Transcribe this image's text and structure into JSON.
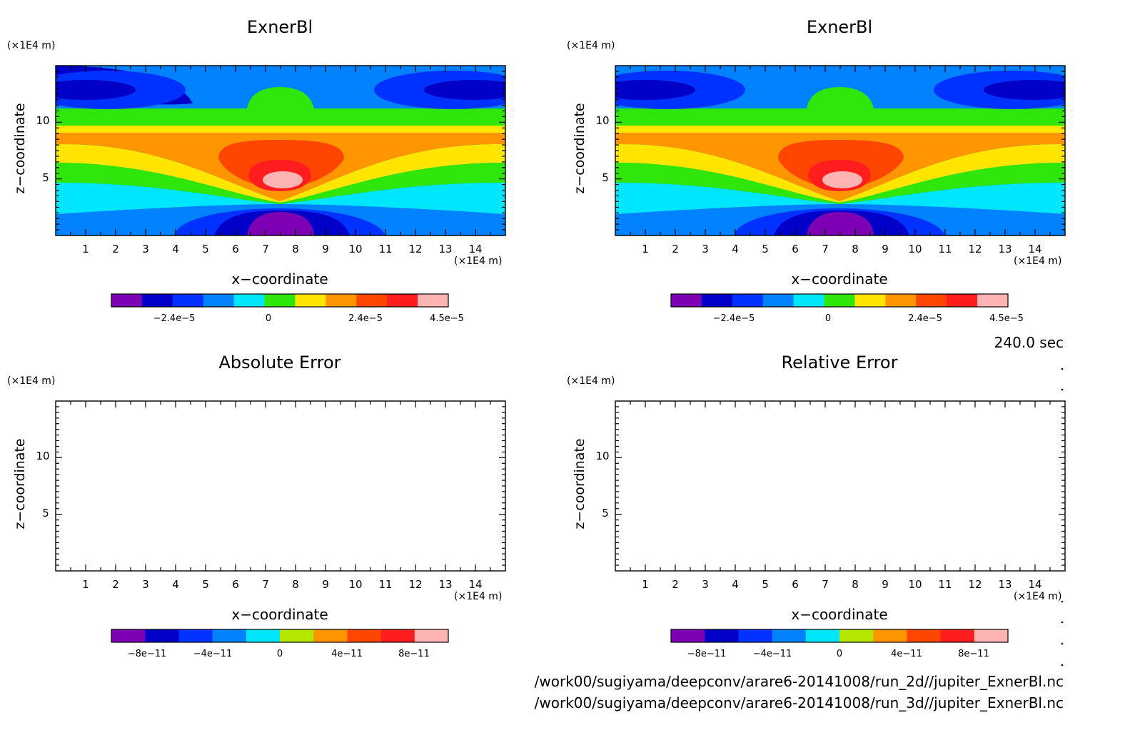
{
  "time_label": "240.0 sec",
  "footer": {
    "file_2d": "/work00/sugiyama/deepconv/arare6-20141008/run_2d//jupiter_ExnerBl.nc",
    "file_3d": "/work00/sugiyama/deepconv/arare6-20141008/run_3d//jupiter_ExnerBl.nc"
  },
  "palette": [
    "#7d00b4",
    "#0000c8",
    "#0032ff",
    "#0082ff",
    "#00e6ff",
    "#2ee60a",
    "#ffe600",
    "#ff9600",
    "#ff4600",
    "#ff1e1e",
    "#ffb4b4"
  ],
  "palette_error": [
    "#7d00b4",
    "#0000c8",
    "#0032ff",
    "#0082ff",
    "#00e6ff",
    "#b4e600",
    "#ff9600",
    "#ff4600",
    "#ff1e1e",
    "#ffb4b4"
  ],
  "chart_data": [
    {
      "type": "heatmap",
      "title": "ExnerBl",
      "xlabel": "x−coordinate",
      "ylabel": "z−coordinate",
      "x_unit": "(×1E4 m)",
      "y_unit": "(×1E4 m)",
      "xlim": [
        0,
        15
      ],
      "ylim": [
        0,
        15
      ],
      "x_ticks": [
        "1",
        "2",
        "3",
        "4",
        "5",
        "6",
        "7",
        "8",
        "9",
        "10",
        "11",
        "12",
        "13",
        "14"
      ],
      "y_ticks": [
        "5",
        "10"
      ],
      "colorbar": {
        "min": -5.4e-05,
        "max": 4.5e-05,
        "levels": 11,
        "labels": [
          "−2.4e−5",
          "0",
          "2.4e−5",
          "4.5e−5"
        ]
      },
      "field": "filled"
    },
    {
      "type": "heatmap",
      "title": "ExnerBl",
      "xlabel": "x−coordinate",
      "ylabel": "z−coordinate",
      "x_unit": "(×1E4 m)",
      "y_unit": "(×1E4 m)",
      "xlim": [
        0,
        15
      ],
      "ylim": [
        0,
        15
      ],
      "x_ticks": [
        "1",
        "2",
        "3",
        "4",
        "5",
        "6",
        "7",
        "8",
        "9",
        "10",
        "11",
        "12",
        "13",
        "14"
      ],
      "y_ticks": [
        "5",
        "10"
      ],
      "colorbar": {
        "min": -5.4e-05,
        "max": 4.5e-05,
        "levels": 11,
        "labels": [
          "−2.4e−5",
          "0",
          "2.4e−5",
          "4.5e−5"
        ]
      },
      "field": "filled"
    },
    {
      "type": "heatmap",
      "title": "Absolute Error",
      "xlabel": "x−coordinate",
      "ylabel": "z−coordinate",
      "x_unit": "(×1E4 m)",
      "y_unit": "(×1E4 m)",
      "xlim": [
        0,
        15
      ],
      "ylim": [
        0,
        15
      ],
      "x_ticks": [
        "1",
        "2",
        "3",
        "4",
        "5",
        "6",
        "7",
        "8",
        "9",
        "10",
        "11",
        "12",
        "13",
        "14"
      ],
      "y_ticks": [
        "5",
        "10"
      ],
      "colorbar": {
        "min": -1e-10,
        "max": 1e-10,
        "levels": 10,
        "labels": [
          "−8e−11",
          "−4e−11",
          "0",
          "4e−11",
          "8e−11"
        ]
      },
      "field": "empty"
    },
    {
      "type": "heatmap",
      "title": "Relative Error",
      "xlabel": "x−coordinate",
      "ylabel": "z−coordinate",
      "x_unit": "(×1E4 m)",
      "y_unit": "(×1E4 m)",
      "xlim": [
        0,
        15
      ],
      "ylim": [
        0,
        15
      ],
      "x_ticks": [
        "1",
        "2",
        "3",
        "4",
        "5",
        "6",
        "7",
        "8",
        "9",
        "10",
        "11",
        "12",
        "13",
        "14"
      ],
      "y_ticks": [
        "5",
        "10"
      ],
      "colorbar": {
        "min": -1e-10,
        "max": 1e-10,
        "levels": 10,
        "labels": [
          "−8e−11",
          "−4e−11",
          "0",
          "4e−11",
          "8e−11"
        ]
      },
      "field": "empty"
    }
  ]
}
